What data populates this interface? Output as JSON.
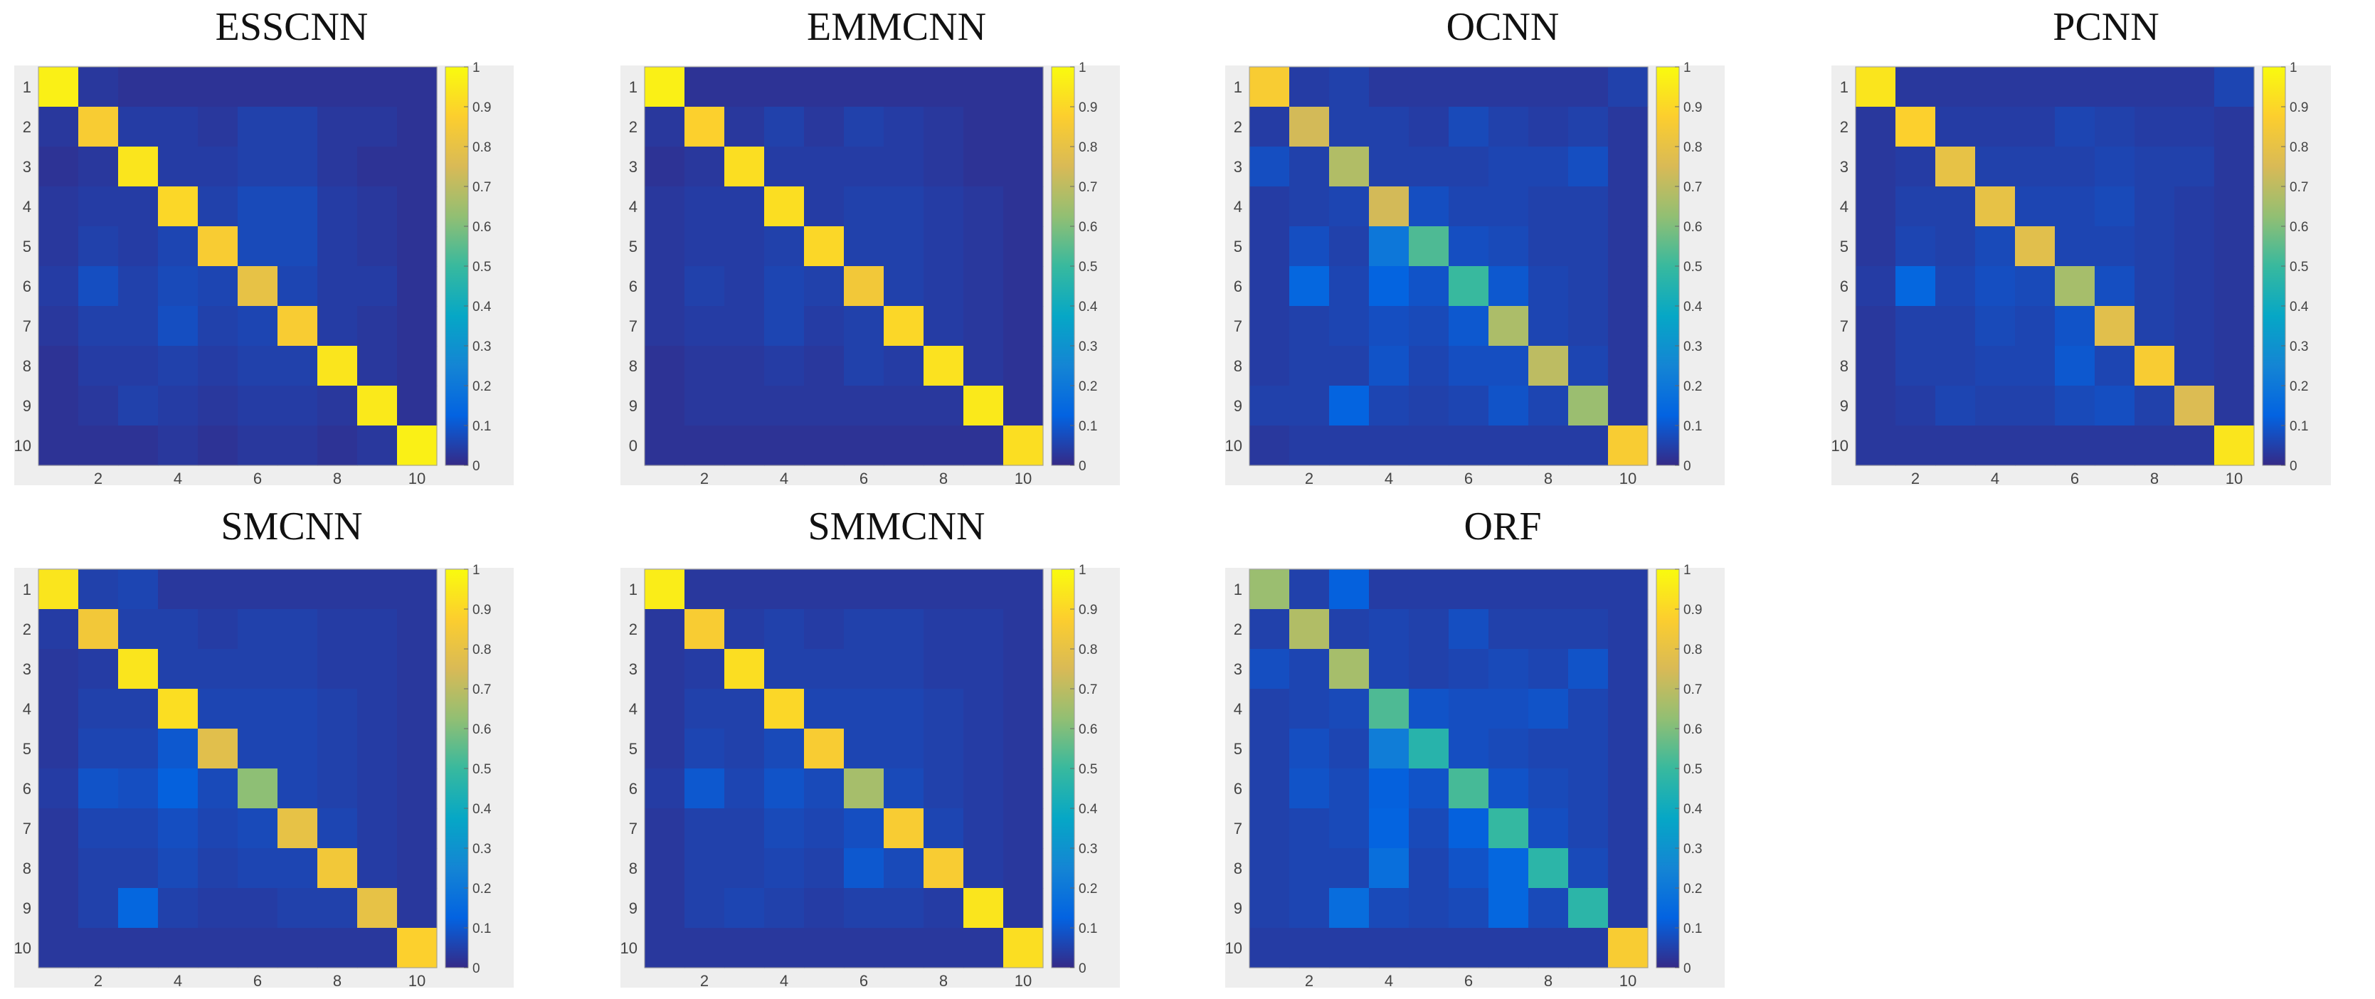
{
  "figure": {
    "background": "#ffffff",
    "panel_background": "#eeeeee"
  },
  "colormap": {
    "name": "parula",
    "range": [
      0,
      1
    ],
    "tick_labels": [
      "0",
      "0.1",
      "0.2",
      "0.3",
      "0.4",
      "0.5",
      "0.6",
      "0.7",
      "0.8",
      "0.9",
      "1"
    ],
    "stops": [
      "#352a87",
      "#0363e1",
      "#1485d4",
      "#06a7c6",
      "#38b99e",
      "#92bf73",
      "#d9ba56",
      "#fcce2e",
      "#f9fb0e"
    ]
  },
  "chart_data": [
    {
      "type": "heatmap",
      "title": "ESSCNN",
      "y_tick_labels": [
        "1",
        "2",
        "3",
        "4",
        "5",
        "6",
        "7",
        "8",
        "9",
        "10"
      ],
      "x_tick_labels": [
        "2",
        "4",
        "6",
        "8",
        "10"
      ],
      "colorbar": [
        0,
        1
      ],
      "matrix": [
        [
          0.97,
          0.03,
          0.02,
          0.02,
          0.02,
          0.02,
          0.02,
          0.02,
          0.02,
          0.02
        ],
        [
          0.03,
          0.86,
          0.04,
          0.04,
          0.03,
          0.05,
          0.05,
          0.03,
          0.03,
          0.02
        ],
        [
          0.02,
          0.03,
          0.94,
          0.04,
          0.04,
          0.05,
          0.05,
          0.03,
          0.02,
          0.02
        ],
        [
          0.03,
          0.04,
          0.04,
          0.9,
          0.05,
          0.07,
          0.07,
          0.04,
          0.03,
          0.02
        ],
        [
          0.03,
          0.05,
          0.04,
          0.06,
          0.86,
          0.07,
          0.07,
          0.04,
          0.03,
          0.02
        ],
        [
          0.04,
          0.08,
          0.05,
          0.07,
          0.06,
          0.8,
          0.06,
          0.04,
          0.04,
          0.02
        ],
        [
          0.03,
          0.05,
          0.05,
          0.08,
          0.05,
          0.06,
          0.86,
          0.04,
          0.03,
          0.02
        ],
        [
          0.02,
          0.04,
          0.04,
          0.05,
          0.04,
          0.05,
          0.05,
          0.94,
          0.03,
          0.02
        ],
        [
          0.02,
          0.03,
          0.05,
          0.04,
          0.03,
          0.04,
          0.04,
          0.03,
          0.95,
          0.02
        ],
        [
          0.02,
          0.02,
          0.02,
          0.03,
          0.02,
          0.03,
          0.03,
          0.02,
          0.03,
          0.97
        ]
      ]
    },
    {
      "type": "heatmap",
      "title": "EMMCNN",
      "y_tick_labels": [
        "1",
        "2",
        "3",
        "4",
        "5",
        "6",
        "7",
        "8",
        "9",
        "0"
      ],
      "x_tick_labels": [
        "2",
        "4",
        "6",
        "8",
        "10"
      ],
      "colorbar": [
        0,
        1
      ],
      "matrix": [
        [
          0.97,
          0.02,
          0.02,
          0.02,
          0.02,
          0.02,
          0.02,
          0.02,
          0.02,
          0.02
        ],
        [
          0.03,
          0.88,
          0.03,
          0.05,
          0.03,
          0.05,
          0.04,
          0.03,
          0.02,
          0.02
        ],
        [
          0.02,
          0.03,
          0.92,
          0.04,
          0.04,
          0.04,
          0.04,
          0.03,
          0.02,
          0.02
        ],
        [
          0.03,
          0.04,
          0.04,
          0.92,
          0.04,
          0.05,
          0.05,
          0.04,
          0.03,
          0.02
        ],
        [
          0.03,
          0.04,
          0.04,
          0.05,
          0.9,
          0.05,
          0.05,
          0.04,
          0.03,
          0.02
        ],
        [
          0.03,
          0.05,
          0.04,
          0.06,
          0.05,
          0.84,
          0.05,
          0.04,
          0.03,
          0.02
        ],
        [
          0.03,
          0.04,
          0.04,
          0.06,
          0.04,
          0.05,
          0.9,
          0.04,
          0.03,
          0.02
        ],
        [
          0.02,
          0.03,
          0.03,
          0.04,
          0.03,
          0.05,
          0.04,
          0.93,
          0.03,
          0.02
        ],
        [
          0.02,
          0.03,
          0.03,
          0.03,
          0.03,
          0.03,
          0.03,
          0.03,
          0.95,
          0.02
        ],
        [
          0.02,
          0.02,
          0.02,
          0.02,
          0.02,
          0.02,
          0.02,
          0.02,
          0.02,
          0.92
        ]
      ]
    },
    {
      "type": "heatmap",
      "title": "OCNN",
      "y_tick_labels": [
        "1",
        "2",
        "3",
        "4",
        "5",
        "6",
        "7",
        "8",
        "9",
        "10"
      ],
      "x_tick_labels": [
        "2",
        "4",
        "6",
        "8",
        "10"
      ],
      "colorbar": [
        0,
        1
      ],
      "matrix": [
        [
          0.86,
          0.04,
          0.05,
          0.03,
          0.03,
          0.03,
          0.03,
          0.03,
          0.03,
          0.05
        ],
        [
          0.04,
          0.74,
          0.05,
          0.05,
          0.04,
          0.07,
          0.05,
          0.04,
          0.05,
          0.03
        ],
        [
          0.08,
          0.05,
          0.68,
          0.05,
          0.05,
          0.05,
          0.06,
          0.06,
          0.08,
          0.03
        ],
        [
          0.04,
          0.05,
          0.06,
          0.74,
          0.08,
          0.06,
          0.06,
          0.05,
          0.05,
          0.03
        ],
        [
          0.04,
          0.08,
          0.05,
          0.2,
          0.53,
          0.08,
          0.07,
          0.05,
          0.05,
          0.03
        ],
        [
          0.04,
          0.14,
          0.06,
          0.13,
          0.09,
          0.5,
          0.1,
          0.06,
          0.05,
          0.03
        ],
        [
          0.04,
          0.05,
          0.06,
          0.08,
          0.07,
          0.1,
          0.67,
          0.06,
          0.05,
          0.03
        ],
        [
          0.04,
          0.05,
          0.05,
          0.09,
          0.06,
          0.08,
          0.08,
          0.7,
          0.06,
          0.03
        ],
        [
          0.05,
          0.05,
          0.13,
          0.06,
          0.05,
          0.06,
          0.09,
          0.06,
          0.64,
          0.03
        ],
        [
          0.03,
          0.04,
          0.04,
          0.04,
          0.04,
          0.04,
          0.04,
          0.04,
          0.04,
          0.86
        ]
      ]
    },
    {
      "type": "heatmap",
      "title": "PCNN",
      "y_tick_labels": [
        "1",
        "2",
        "3",
        "4",
        "5",
        "6",
        "7",
        "8",
        "9",
        "10"
      ],
      "x_tick_labels": [
        "2",
        "4",
        "6",
        "8",
        "10"
      ],
      "colorbar": [
        0,
        1
      ],
      "matrix": [
        [
          0.94,
          0.03,
          0.03,
          0.03,
          0.03,
          0.03,
          0.03,
          0.03,
          0.03,
          0.06
        ],
        [
          0.03,
          0.88,
          0.04,
          0.04,
          0.04,
          0.06,
          0.05,
          0.04,
          0.04,
          0.03
        ],
        [
          0.03,
          0.04,
          0.8,
          0.05,
          0.05,
          0.05,
          0.06,
          0.05,
          0.05,
          0.03
        ],
        [
          0.03,
          0.05,
          0.05,
          0.8,
          0.06,
          0.06,
          0.07,
          0.05,
          0.04,
          0.03
        ],
        [
          0.03,
          0.06,
          0.05,
          0.07,
          0.78,
          0.06,
          0.06,
          0.05,
          0.04,
          0.03
        ],
        [
          0.04,
          0.14,
          0.06,
          0.08,
          0.07,
          0.66,
          0.08,
          0.05,
          0.04,
          0.03
        ],
        [
          0.03,
          0.05,
          0.05,
          0.07,
          0.06,
          0.09,
          0.78,
          0.05,
          0.04,
          0.03
        ],
        [
          0.03,
          0.05,
          0.05,
          0.06,
          0.06,
          0.1,
          0.06,
          0.86,
          0.04,
          0.03
        ],
        [
          0.03,
          0.04,
          0.06,
          0.05,
          0.05,
          0.07,
          0.08,
          0.05,
          0.76,
          0.03
        ],
        [
          0.03,
          0.03,
          0.03,
          0.03,
          0.03,
          0.03,
          0.03,
          0.03,
          0.03,
          0.94
        ]
      ]
    },
    {
      "type": "heatmap",
      "title": "SMCNN",
      "y_tick_labels": [
        "1",
        "2",
        "3",
        "4",
        "5",
        "6",
        "7",
        "8",
        "9",
        "10"
      ],
      "x_tick_labels": [
        "2",
        "4",
        "6",
        "8",
        "10"
      ],
      "colorbar": [
        0,
        1
      ],
      "matrix": [
        [
          0.94,
          0.05,
          0.06,
          0.03,
          0.03,
          0.03,
          0.03,
          0.03,
          0.03,
          0.03
        ],
        [
          0.04,
          0.84,
          0.05,
          0.05,
          0.04,
          0.05,
          0.05,
          0.04,
          0.04,
          0.03
        ],
        [
          0.03,
          0.04,
          0.94,
          0.05,
          0.05,
          0.05,
          0.05,
          0.04,
          0.04,
          0.03
        ],
        [
          0.03,
          0.05,
          0.05,
          0.92,
          0.06,
          0.06,
          0.06,
          0.05,
          0.04,
          0.03
        ],
        [
          0.03,
          0.06,
          0.06,
          0.1,
          0.78,
          0.06,
          0.06,
          0.05,
          0.04,
          0.03
        ],
        [
          0.04,
          0.09,
          0.08,
          0.12,
          0.07,
          0.62,
          0.06,
          0.05,
          0.04,
          0.03
        ],
        [
          0.03,
          0.06,
          0.06,
          0.08,
          0.06,
          0.07,
          0.8,
          0.06,
          0.04,
          0.03
        ],
        [
          0.03,
          0.05,
          0.05,
          0.07,
          0.05,
          0.06,
          0.06,
          0.84,
          0.04,
          0.03
        ],
        [
          0.03,
          0.05,
          0.14,
          0.05,
          0.04,
          0.04,
          0.05,
          0.05,
          0.8,
          0.03
        ],
        [
          0.03,
          0.03,
          0.03,
          0.03,
          0.03,
          0.03,
          0.03,
          0.03,
          0.03,
          0.88
        ]
      ]
    },
    {
      "type": "heatmap",
      "title": "SMMCNN",
      "y_tick_labels": [
        "1",
        "2",
        "3",
        "4",
        "5",
        "6",
        "7",
        "8",
        "9",
        "10"
      ],
      "x_tick_labels": [
        "2",
        "4",
        "6",
        "8",
        "10"
      ],
      "colorbar": [
        0,
        1
      ],
      "matrix": [
        [
          0.96,
          0.03,
          0.03,
          0.03,
          0.03,
          0.03,
          0.03,
          0.03,
          0.03,
          0.03
        ],
        [
          0.03,
          0.86,
          0.04,
          0.05,
          0.04,
          0.05,
          0.05,
          0.04,
          0.04,
          0.03
        ],
        [
          0.03,
          0.04,
          0.92,
          0.05,
          0.05,
          0.05,
          0.05,
          0.04,
          0.04,
          0.03
        ],
        [
          0.03,
          0.05,
          0.05,
          0.9,
          0.06,
          0.06,
          0.06,
          0.05,
          0.04,
          0.03
        ],
        [
          0.03,
          0.06,
          0.05,
          0.07,
          0.86,
          0.06,
          0.06,
          0.05,
          0.04,
          0.03
        ],
        [
          0.04,
          0.1,
          0.06,
          0.09,
          0.07,
          0.66,
          0.07,
          0.05,
          0.04,
          0.03
        ],
        [
          0.03,
          0.05,
          0.05,
          0.07,
          0.06,
          0.08,
          0.86,
          0.06,
          0.04,
          0.03
        ],
        [
          0.03,
          0.05,
          0.05,
          0.06,
          0.05,
          0.1,
          0.07,
          0.86,
          0.04,
          0.03
        ],
        [
          0.03,
          0.05,
          0.06,
          0.05,
          0.04,
          0.05,
          0.05,
          0.04,
          0.94,
          0.03
        ],
        [
          0.03,
          0.03,
          0.03,
          0.03,
          0.03,
          0.03,
          0.03,
          0.03,
          0.03,
          0.92
        ]
      ]
    },
    {
      "type": "heatmap",
      "title": "ORF",
      "y_tick_labels": [
        "1",
        "2",
        "3",
        "4",
        "5",
        "6",
        "7",
        "8",
        "9",
        "10"
      ],
      "x_tick_labels": [
        "2",
        "4",
        "6",
        "8",
        "10"
      ],
      "colorbar": [
        0,
        1
      ],
      "matrix": [
        [
          0.64,
          0.05,
          0.12,
          0.04,
          0.04,
          0.04,
          0.04,
          0.04,
          0.04,
          0.04
        ],
        [
          0.05,
          0.68,
          0.05,
          0.06,
          0.05,
          0.08,
          0.05,
          0.05,
          0.05,
          0.04
        ],
        [
          0.08,
          0.06,
          0.66,
          0.06,
          0.05,
          0.06,
          0.07,
          0.06,
          0.09,
          0.04
        ],
        [
          0.05,
          0.06,
          0.07,
          0.53,
          0.09,
          0.08,
          0.08,
          0.09,
          0.06,
          0.04
        ],
        [
          0.05,
          0.08,
          0.06,
          0.22,
          0.46,
          0.08,
          0.07,
          0.06,
          0.06,
          0.04
        ],
        [
          0.05,
          0.09,
          0.07,
          0.12,
          0.09,
          0.52,
          0.09,
          0.07,
          0.06,
          0.04
        ],
        [
          0.05,
          0.06,
          0.07,
          0.13,
          0.07,
          0.12,
          0.49,
          0.08,
          0.06,
          0.04
        ],
        [
          0.05,
          0.06,
          0.06,
          0.17,
          0.06,
          0.09,
          0.14,
          0.47,
          0.07,
          0.04
        ],
        [
          0.05,
          0.06,
          0.16,
          0.07,
          0.06,
          0.07,
          0.14,
          0.07,
          0.47,
          0.04
        ],
        [
          0.04,
          0.04,
          0.04,
          0.04,
          0.04,
          0.04,
          0.04,
          0.04,
          0.04,
          0.86
        ]
      ]
    }
  ]
}
